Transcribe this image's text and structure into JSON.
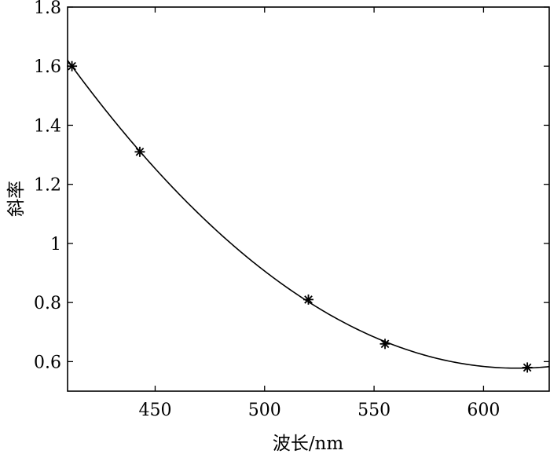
{
  "chart_data": {
    "type": "line",
    "title": "",
    "xlabel": "波长/nm",
    "ylabel": "斜率",
    "xlim": [
      410,
      630
    ],
    "ylim": [
      0.5,
      1.8
    ],
    "xticks": [
      450,
      500,
      550,
      600
    ],
    "xtick_labels": [
      "450",
      "500",
      "550",
      "600"
    ],
    "yticks": [
      0.6,
      0.8,
      1.0,
      1.2,
      1.4,
      1.6,
      1.8
    ],
    "ytick_labels": [
      "0.6",
      "0.8",
      "1",
      "1.2",
      "1.4",
      "1.6",
      "1.8"
    ],
    "grid": false,
    "legend": "none",
    "line_color": "#000000",
    "marker": "asterisk",
    "series": [
      {
        "kind": "markers",
        "x": [
          412,
          443,
          520,
          555,
          620
        ],
        "y": [
          1.6,
          1.31,
          0.81,
          0.66,
          0.58
        ]
      },
      {
        "kind": "fit-curve",
        "x": [
          410,
          420,
          430,
          440,
          450,
          460,
          470,
          480,
          490,
          500,
          510,
          520,
          530,
          540,
          550,
          560,
          570,
          580,
          590,
          600,
          610,
          620,
          630
        ],
        "y": [
          1.625,
          1.505,
          1.395,
          1.291,
          1.193,
          1.102,
          1.016,
          0.938,
          0.866,
          0.801,
          0.745,
          0.8,
          0.663,
          0.679,
          0.665,
          0.625,
          0.596,
          0.58,
          0.583,
          0.578,
          0.577,
          0.578,
          0.582
        ]
      }
    ]
  }
}
